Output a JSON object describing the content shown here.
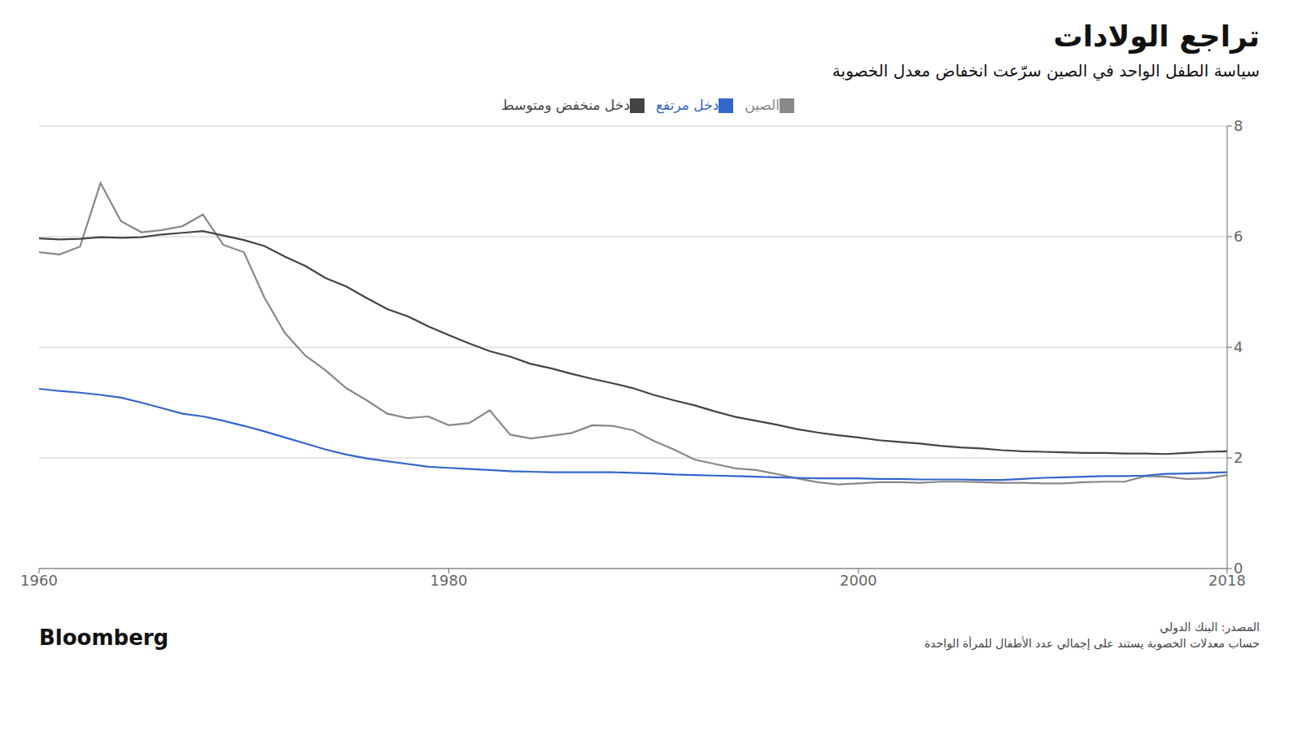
{
  "chart_data": {
    "type": "line",
    "title": "تراجع الولادات",
    "subtitle": "سياسة الطفل الواحد في الصين سرّعت انخفاض معدل الخصوبة",
    "annotations": [
      "Bloomberg",
      "المصدر: البنك الدولي",
      "حساب معدلات الخصوبة يستند على إجمالي عدد الأطفال للمرأة الواحدة"
    ],
    "x": [
      1960,
      1961,
      1962,
      1963,
      1964,
      1965,
      1966,
      1967,
      1968,
      1969,
      1970,
      1971,
      1972,
      1973,
      1974,
      1975,
      1976,
      1977,
      1978,
      1979,
      1980,
      1981,
      1982,
      1983,
      1984,
      1985,
      1986,
      1987,
      1988,
      1989,
      1990,
      1991,
      1992,
      1993,
      1994,
      1995,
      1996,
      1997,
      1998,
      1999,
      2000,
      2001,
      2002,
      2003,
      2004,
      2005,
      2006,
      2007,
      2008,
      2009,
      2010,
      2011,
      2012,
      2013,
      2014,
      2015,
      2016,
      2017,
      2018
    ],
    "series": [
      {
        "name": "الصين",
        "color": "#888888",
        "values": [
          5.72,
          5.68,
          5.82,
          6.97,
          6.28,
          6.08,
          6.12,
          6.19,
          6.4,
          5.85,
          5.72,
          4.9,
          4.26,
          3.85,
          3.58,
          3.26,
          3.04,
          2.8,
          2.72,
          2.75,
          2.59,
          2.63,
          2.86,
          2.42,
          2.35,
          2.4,
          2.45,
          2.59,
          2.58,
          2.5,
          2.31,
          2.15,
          1.97,
          1.89,
          1.81,
          1.78,
          1.71,
          1.63,
          1.56,
          1.52,
          1.54,
          1.56,
          1.56,
          1.55,
          1.57,
          1.57,
          1.56,
          1.55,
          1.55,
          1.54,
          1.54,
          1.56,
          1.57,
          1.57,
          1.67,
          1.66,
          1.62,
          1.63,
          1.69
        ]
      },
      {
        "name": "دخل منخفض ومتوسط",
        "color": "#444444",
        "values": [
          5.97,
          5.95,
          5.96,
          5.99,
          5.98,
          5.99,
          6.04,
          6.07,
          6.1,
          6.02,
          5.94,
          5.83,
          5.64,
          5.47,
          5.25,
          5.1,
          4.89,
          4.69,
          4.56,
          4.38,
          4.22,
          4.07,
          3.93,
          3.83,
          3.7,
          3.62,
          3.52,
          3.43,
          3.35,
          3.26,
          3.14,
          3.04,
          2.95,
          2.84,
          2.74,
          2.67,
          2.6,
          2.52,
          2.46,
          2.41,
          2.37,
          2.32,
          2.29,
          2.26,
          2.22,
          2.19,
          2.17,
          2.14,
          2.12,
          2.11,
          2.1,
          2.09,
          2.09,
          2.08,
          2.08,
          2.07,
          2.09,
          2.11,
          2.12
        ]
      },
      {
        "name": "دخل مرتفع",
        "color": "#3366cc",
        "values": [
          3.25,
          3.21,
          3.18,
          3.14,
          3.09,
          3.0,
          2.9,
          2.8,
          2.75,
          2.67,
          2.58,
          2.48,
          2.37,
          2.26,
          2.15,
          2.06,
          1.99,
          1.94,
          1.89,
          1.84,
          1.82,
          1.8,
          1.78,
          1.76,
          1.75,
          1.74,
          1.74,
          1.74,
          1.74,
          1.73,
          1.72,
          1.7,
          1.69,
          1.68,
          1.67,
          1.66,
          1.65,
          1.64,
          1.63,
          1.63,
          1.63,
          1.62,
          1.62,
          1.61,
          1.61,
          1.61,
          1.6,
          1.6,
          1.62,
          1.64,
          1.65,
          1.66,
          1.67,
          1.67,
          1.68,
          1.71,
          1.72,
          1.73,
          1.74
        ]
      }
    ],
    "xlim": [
      1960,
      2018
    ],
    "ylim": [
      0,
      8
    ],
    "xticks": [
      1960,
      1980,
      2000,
      2018
    ],
    "yticks": [
      0,
      2,
      4,
      6,
      8
    ],
    "grid": true,
    "legend": "top"
  }
}
